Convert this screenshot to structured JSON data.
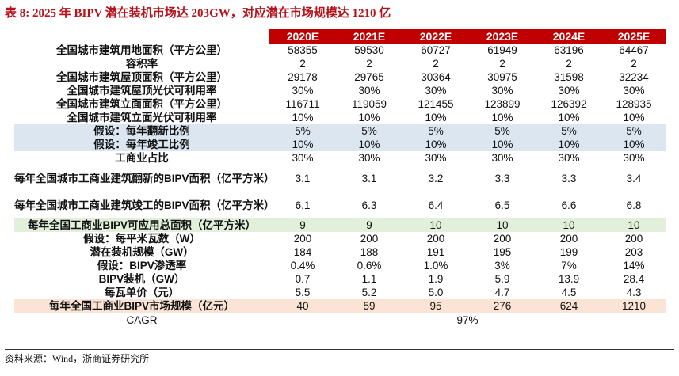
{
  "title": "表 8:  2025 年 BIPV 潜在装机市场达 203GW，对应潜在市场规模达 1210 亿",
  "header": [
    "2020E",
    "2021E",
    "2022E",
    "2023E",
    "2024E",
    "2025E"
  ],
  "rows": [
    {
      "label": "全国城市建筑用地面积（平方公里）",
      "values": [
        "58355",
        "59530",
        "60727",
        "61949",
        "63196",
        "64467"
      ]
    },
    {
      "label": "容积率",
      "values": [
        "2",
        "2",
        "2",
        "2",
        "2",
        "2"
      ]
    },
    {
      "label": "全国城市建筑屋顶面积（平方公里）",
      "values": [
        "29178",
        "29765",
        "30364",
        "30975",
        "31598",
        "32234"
      ]
    },
    {
      "label": "全国城市建筑屋顶光伏可利用率",
      "values": [
        "30%",
        "30%",
        "30%",
        "30%",
        "30%",
        "30%"
      ]
    },
    {
      "label": "全国城市建筑立面面积（平方公里）",
      "values": [
        "116711",
        "119059",
        "121455",
        "123899",
        "126392",
        "128935"
      ]
    },
    {
      "label": "全国城市建筑立面光伏可利用率",
      "values": [
        "10%",
        "10%",
        "10%",
        "10%",
        "10%",
        "10%"
      ]
    },
    {
      "label": "假设：每年翻新比例",
      "values": [
        "5%",
        "5%",
        "5%",
        "5%",
        "5%",
        "5%"
      ]
    },
    {
      "label": "假设：每年竣工比例",
      "values": [
        "10%",
        "10%",
        "10%",
        "10%",
        "10%",
        "10%"
      ]
    },
    {
      "label": "工商业占比",
      "values": [
        "30%",
        "30%",
        "30%",
        "30%",
        "30%",
        "30%"
      ]
    },
    {
      "label": "每年全国城市工商业建筑翻新的BIPV面积（亿平方米）",
      "values": [
        "3.1",
        "3.1",
        "3.2",
        "3.3",
        "3.3",
        "3.4"
      ]
    },
    {
      "label": "每年全国城市工商业建筑竣工的BIPV面积（亿平方米）",
      "values": [
        "6.1",
        "6.3",
        "6.4",
        "6.5",
        "6.6",
        "6.8"
      ]
    },
    {
      "label": "每年全国工商业BIPV可应用总面积（亿平方米）",
      "values": [
        "9",
        "9",
        "10",
        "10",
        "10",
        "10"
      ]
    },
    {
      "label": "假设：每平米瓦数（W）",
      "values": [
        "200",
        "200",
        "200",
        "200",
        "200",
        "200"
      ]
    },
    {
      "label": "潜在装机规模（GW）",
      "values": [
        "184",
        "188",
        "191",
        "195",
        "199",
        "203"
      ]
    },
    {
      "label": "假设：BIPV渗透率",
      "values": [
        "0.4%",
        "0.6%",
        "1.0%",
        "3%",
        "7%",
        "14%"
      ]
    },
    {
      "label": "BIPV装机（GW）",
      "values": [
        "0.7",
        "1.1",
        "1.9",
        "5.9",
        "13.9",
        "28.4"
      ]
    },
    {
      "label": "每瓦单价（元）",
      "values": [
        "5.5",
        "5.2",
        "5.0",
        "4.7",
        "4.5",
        "4.3"
      ]
    },
    {
      "label": "每年全国工商业BIPV市场规模（亿元）",
      "values": [
        "40",
        "59",
        "95",
        "276",
        "624",
        "1210"
      ]
    }
  ],
  "cagr": {
    "label": "CAGR",
    "value": "97%"
  },
  "source": "资料来源：Wind，浙商证券研究所"
}
